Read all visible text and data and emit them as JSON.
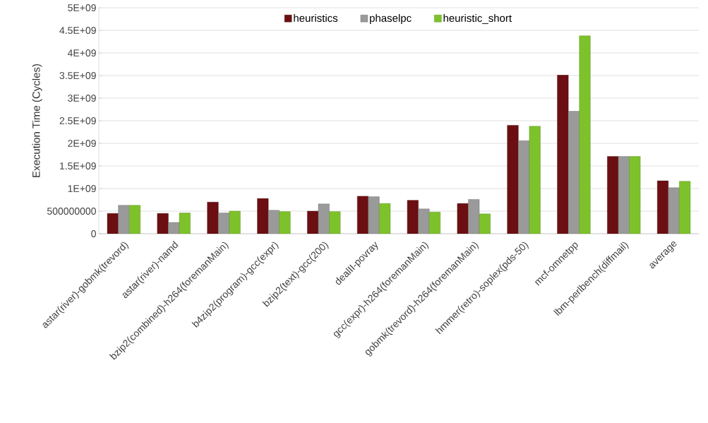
{
  "chart_data": {
    "type": "bar",
    "ylabel": "Execution Time (Cycles)",
    "categories": [
      "astar(river)-gobmk(trevord)",
      "astar(river)-namd",
      "bzip2(combined)-h264(foremanMain)",
      "b4zip2(program)-gcc(expr)",
      "bzip2(text)-gcc(200)",
      "dealII-povray",
      "gcc(expr)-h264(foremanMain)",
      "gobmk(trevord)-h264(foremanMain)",
      "hmmer(retro)-soplex(pds-50)",
      "mcf-omnetpp",
      "lbm-perlbench(diffmail)",
      "average"
    ],
    "series": [
      {
        "name": "heuristics",
        "color": "#6b0f12",
        "values": [
          450000000,
          450000000,
          700000000,
          780000000,
          500000000,
          830000000,
          740000000,
          670000000,
          2400000000,
          3510000000,
          1710000000,
          1170000000
        ]
      },
      {
        "name": "phaselpc",
        "color": "#9a9a9a",
        "values": [
          630000000,
          250000000,
          460000000,
          520000000,
          660000000,
          820000000,
          550000000,
          760000000,
          2060000000,
          2710000000,
          1710000000,
          1020000000
        ]
      },
      {
        "name": "heuristic_short",
        "color": "#7dc22a",
        "values": [
          630000000,
          460000000,
          500000000,
          490000000,
          490000000,
          670000000,
          480000000,
          440000000,
          2380000000,
          4380000000,
          1710000000,
          1160000000
        ]
      }
    ],
    "ylim": [
      0,
      5000000000
    ],
    "yticks": [
      0,
      {
        "value": 500000000,
        "label": "500000000"
      },
      {
        "value": 1000000000,
        "label": "1E+09"
      },
      {
        "value": 1500000000,
        "label": "1.5E+09"
      },
      {
        "value": 2000000000,
        "label": "2E+09"
      },
      {
        "value": 2500000000,
        "label": "2.5E+09"
      },
      {
        "value": 3000000000,
        "label": "3E+09"
      },
      {
        "value": 3500000000,
        "label": "3.5E+09"
      },
      {
        "value": 4000000000,
        "label": "4E+09"
      },
      {
        "value": 4500000000,
        "label": "4.5E+09"
      },
      {
        "value": 5000000000,
        "label": "5E+09"
      }
    ],
    "grid": "y",
    "legend": "top"
  }
}
